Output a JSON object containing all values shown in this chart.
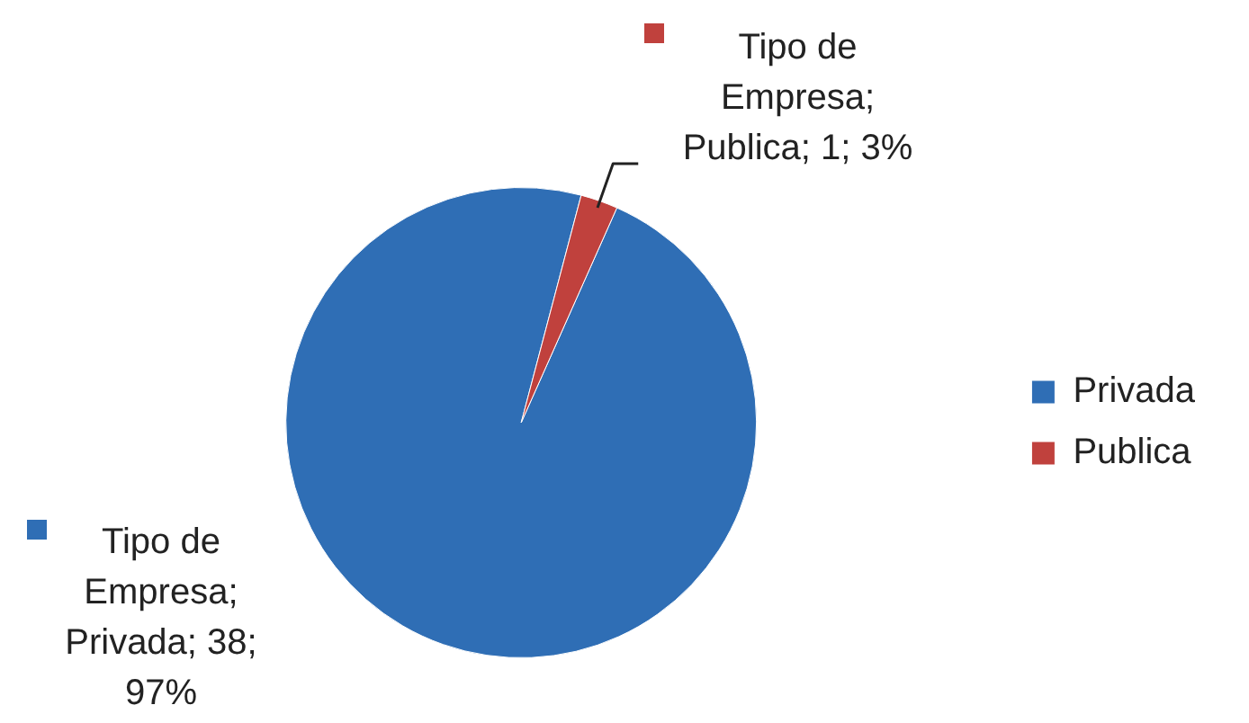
{
  "chart_data": {
    "type": "pie",
    "categories": [
      "Privada",
      "Publica"
    ],
    "values": [
      38,
      1
    ],
    "colors": [
      "#2f6eb5",
      "#c0413d"
    ],
    "value_labels": [
      "Tipo de Empresa; Privada; 38; 97%",
      "Tipo de Empresa; Publica; 1; 3%"
    ],
    "legend": "right"
  }
}
